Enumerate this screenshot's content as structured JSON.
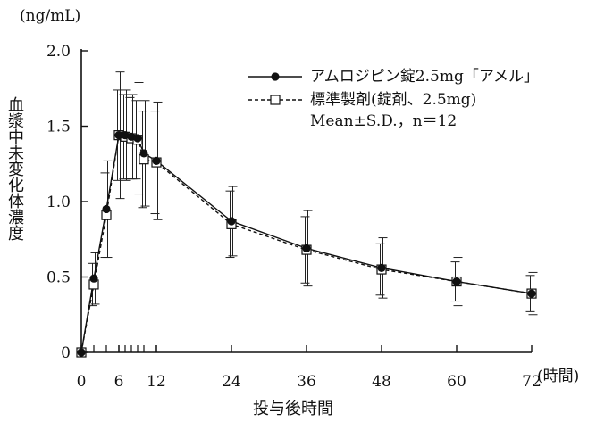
{
  "chart_data": {
    "type": "line",
    "x_unit_label": "(時間)",
    "y_unit_label": "(ng/mL)",
    "xlabel": "投与後時間",
    "ylabel": "血漿中未変化体濃度",
    "xlim": [
      0,
      72
    ],
    "ylim": [
      0,
      2.0
    ],
    "x_ticks": [
      0,
      6,
      12,
      24,
      36,
      48,
      60,
      72
    ],
    "x_minor_ticks": [
      2,
      4,
      6,
      7,
      8,
      9,
      10,
      12
    ],
    "y_ticks": [
      {
        "value": 0,
        "label": "0"
      },
      {
        "value": 0.5,
        "label": "0.5"
      },
      {
        "value": 1.0,
        "label": "1.0"
      },
      {
        "value": 1.5,
        "label": "1.5"
      },
      {
        "value": 2.0,
        "label": "2.0"
      }
    ],
    "x_tick_labels": [
      "0",
      "6",
      "12",
      "24",
      "36",
      "48",
      "60",
      "72"
    ],
    "legend_position": "top-right",
    "legend_note": "Mean±S.D.，n＝12",
    "series": [
      {
        "name": "アムロジピン錠2.5mg「アメル」",
        "marker": "filled-circle",
        "line": "solid",
        "x": [
          0,
          2,
          4,
          6,
          7,
          8,
          9,
          10,
          12,
          24,
          36,
          48,
          60,
          72
        ],
        "values": [
          0,
          0.49,
          0.95,
          1.44,
          1.44,
          1.43,
          1.42,
          1.32,
          1.27,
          0.87,
          0.69,
          0.56,
          0.47,
          0.39
        ],
        "sd": [
          0,
          0.17,
          0.32,
          0.42,
          0.3,
          0.28,
          0.37,
          0.35,
          0.39,
          0.23,
          0.25,
          0.2,
          0.16,
          0.14
        ]
      },
      {
        "name": "標準製剤(錠剤、2.5mg)",
        "marker": "open-square",
        "line": "dashed",
        "x": [
          0,
          2,
          4,
          6,
          7,
          8,
          9,
          10,
          12,
          24,
          36,
          48,
          60,
          72
        ],
        "values": [
          0,
          0.45,
          0.91,
          1.44,
          1.43,
          1.42,
          1.41,
          1.28,
          1.26,
          0.85,
          0.68,
          0.55,
          0.47,
          0.39
        ],
        "sd": [
          0,
          0.14,
          0.28,
          0.3,
          0.28,
          0.27,
          0.26,
          0.32,
          0.34,
          0.22,
          0.22,
          0.17,
          0.13,
          0.12
        ]
      }
    ]
  }
}
